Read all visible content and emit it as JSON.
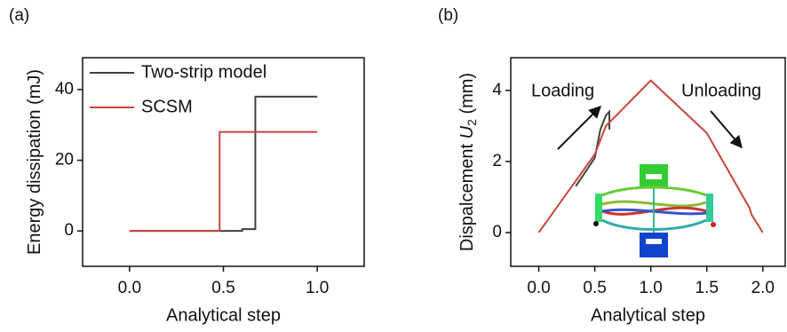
{
  "chart_data": [
    {
      "type": "line",
      "label": "(a)",
      "xlabel": "Analytical step",
      "ylabel": "Energy dissipation (mJ)",
      "xlim": [
        -0.25,
        1.25
      ],
      "xticks": [
        {
          "value": 0,
          "label": "0.0"
        },
        {
          "value": 0.5,
          "label": "0.5"
        },
        {
          "value": 1,
          "label": "1.0"
        }
      ],
      "ylim": [
        -10,
        49
      ],
      "yticks": [
        0,
        20,
        40
      ],
      "legend": "upper left",
      "series": [
        {
          "name": "Two-strip model",
          "color": "#404040",
          "x": [
            0,
            0.6,
            0.6,
            0.67,
            0.67,
            1.0
          ],
          "values": [
            0,
            0,
            0.5,
            0.5,
            38,
            38
          ]
        },
        {
          "name": "SCSM",
          "color": "#c8453e",
          "x": [
            0,
            0.48,
            0.48,
            1.0
          ],
          "values": [
            0,
            0,
            28,
            28
          ]
        }
      ]
    },
    {
      "type": "line",
      "label": "(b)",
      "xlabel": "Analytical step",
      "ylabel": "Dispalcement",
      "ylabel_var": "U",
      "ylabel_sub": "2",
      "ylabel_unit": "(mm)",
      "xlim": [
        -0.25,
        2.2
      ],
      "xticks": [
        {
          "value": 0,
          "label": "0.0"
        },
        {
          "value": 0.5,
          "label": "0.5"
        },
        {
          "value": 1,
          "label": "1.0"
        },
        {
          "value": 1.5,
          "label": "1.5"
        },
        {
          "value": 2,
          "label": "2.0"
        }
      ],
      "ylim": [
        -0.95,
        4.92
      ],
      "yticks": [
        0,
        2,
        4
      ],
      "annotations": [
        "Loading",
        "Unloading"
      ],
      "series": [
        {
          "color": "#404040",
          "x": [
            0.33,
            0.5,
            0.55,
            0.6,
            0.63,
            0.63
          ],
          "values": [
            1.3,
            2.1,
            2.9,
            3.3,
            3.4,
            2.9
          ]
        },
        {
          "color": "#c8453e",
          "x": [
            0,
            0.5,
            0.55,
            0.6,
            1.0,
            1.5,
            1.88,
            1.9,
            2.0
          ],
          "values": [
            0,
            2.2,
            2.6,
            3.0,
            4.28,
            2.8,
            0.7,
            0.5,
            0
          ]
        }
      ]
    }
  ]
}
